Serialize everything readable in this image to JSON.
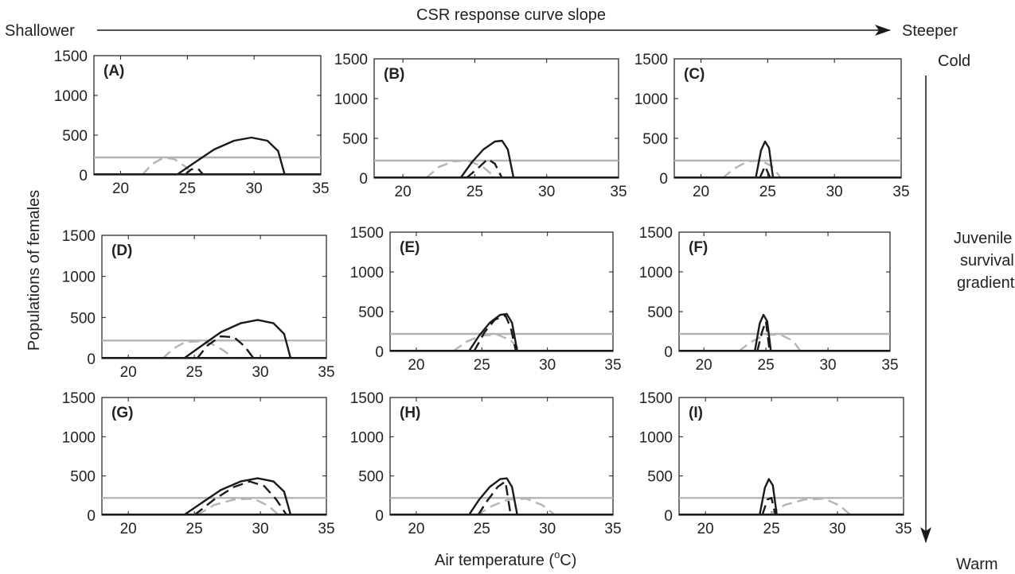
{
  "header": {
    "top_title": "CSR response curve slope",
    "left_label": "Shallower",
    "right_label": "Steeper",
    "right_top": "Cold",
    "right_mid": [
      "Juvenile",
      "survival",
      "gradient"
    ],
    "right_bottom": "Warm"
  },
  "axes": {
    "ylabel": "Populations of females",
    "xlabel_main": "Air  temperature (",
    "xlabel_sup": "o",
    "xlabel_end": "C)"
  },
  "colors": {
    "black": "#1a1a1a",
    "gray": "#b4b4b4"
  },
  "chart_data": [
    {
      "type": "line",
      "panel": "(A)",
      "xlim": [
        18,
        35
      ],
      "ylim": [
        0,
        1500
      ],
      "xticks": [
        20,
        25,
        30,
        35
      ],
      "yticks": [
        0,
        500,
        1000,
        1500
      ],
      "series": [
        {
          "style": "gray-solid",
          "x": [
            18,
            35
          ],
          "y": [
            220,
            220
          ]
        },
        {
          "style": "gray-dashed",
          "x": [
            21.6,
            22.4,
            23.2,
            24.0,
            24.8,
            25.5
          ],
          "y": [
            0,
            140,
            215,
            200,
            110,
            0
          ]
        },
        {
          "style": "black-solid",
          "x": [
            24.2,
            25.5,
            27.0,
            28.5,
            29.8,
            31.0,
            31.8,
            32.3
          ],
          "y": [
            0,
            150,
            320,
            430,
            470,
            430,
            300,
            0
          ]
        },
        {
          "style": "black-dashed",
          "x": [
            24.8,
            25.3,
            25.8,
            26.2
          ],
          "y": [
            0,
            70,
            80,
            0
          ]
        }
      ]
    },
    {
      "type": "line",
      "panel": "(B)",
      "xlim": [
        18,
        35
      ],
      "ylim": [
        0,
        1500
      ],
      "xticks": [
        20,
        25,
        30,
        35
      ],
      "yticks": [
        0,
        500,
        1000,
        1500
      ],
      "series": [
        {
          "style": "gray-solid",
          "x": [
            18,
            35
          ],
          "y": [
            220,
            220
          ]
        },
        {
          "style": "gray-dashed",
          "x": [
            21.6,
            22.5,
            23.5,
            24.5,
            25.5,
            26.5
          ],
          "y": [
            0,
            140,
            210,
            220,
            150,
            0
          ]
        },
        {
          "style": "black-solid",
          "x": [
            24.0,
            24.8,
            25.6,
            26.4,
            26.9,
            27.3,
            27.7
          ],
          "y": [
            0,
            200,
            360,
            460,
            470,
            360,
            0
          ]
        },
        {
          "style": "black-dashed",
          "x": [
            24.4,
            25.2,
            25.9,
            26.4,
            26.9
          ],
          "y": [
            0,
            120,
            240,
            180,
            0
          ]
        }
      ]
    },
    {
      "type": "line",
      "panel": "(C)",
      "xlim": [
        18,
        35
      ],
      "ylim": [
        0,
        1500
      ],
      "xticks": [
        20,
        25,
        30,
        35
      ],
      "yticks": [
        0,
        500,
        1000,
        1500
      ],
      "series": [
        {
          "style": "gray-solid",
          "x": [
            18,
            35
          ],
          "y": [
            220,
            220
          ]
        },
        {
          "style": "gray-dashed",
          "x": [
            21.6,
            22.5,
            23.5,
            24.5,
            25.3,
            26.0
          ],
          "y": [
            0,
            120,
            210,
            220,
            150,
            0
          ]
        },
        {
          "style": "black-solid",
          "x": [
            24.1,
            24.5,
            24.8,
            25.1,
            25.4
          ],
          "y": [
            0,
            350,
            460,
            380,
            0
          ]
        },
        {
          "style": "black-dashed",
          "x": [
            24.4,
            24.8,
            25.2
          ],
          "y": [
            0,
            150,
            0
          ]
        }
      ]
    },
    {
      "type": "line",
      "panel": "(D)",
      "xlim": [
        18,
        35
      ],
      "ylim": [
        0,
        1500
      ],
      "xticks": [
        20,
        25,
        30,
        35
      ],
      "yticks": [
        0,
        500,
        1000,
        1500
      ],
      "series": [
        {
          "style": "gray-solid",
          "x": [
            18,
            35
          ],
          "y": [
            220,
            220
          ]
        },
        {
          "style": "gray-dashed",
          "x": [
            22.6,
            23.4,
            24.3,
            25.3,
            26.3,
            27.2,
            28.0
          ],
          "y": [
            0,
            120,
            200,
            210,
            180,
            100,
            0
          ]
        },
        {
          "style": "black-solid",
          "x": [
            24.2,
            25.5,
            27.0,
            28.5,
            29.8,
            31.0,
            31.8,
            32.3
          ],
          "y": [
            0,
            150,
            320,
            430,
            470,
            430,
            300,
            0
          ]
        },
        {
          "style": "black-dashed",
          "x": [
            25.2,
            26.0,
            27.0,
            28.0,
            28.8,
            29.5
          ],
          "y": [
            0,
            160,
            270,
            260,
            150,
            0
          ]
        }
      ]
    },
    {
      "type": "line",
      "panel": "(E)",
      "xlim": [
        18,
        35
      ],
      "ylim": [
        0,
        1500
      ],
      "xticks": [
        20,
        25,
        30,
        35
      ],
      "yticks": [
        0,
        500,
        1000,
        1500
      ],
      "series": [
        {
          "style": "gray-solid",
          "x": [
            18,
            35
          ],
          "y": [
            220,
            220
          ]
        },
        {
          "style": "gray-dashed",
          "x": [
            22.8,
            23.8,
            25.0,
            26.2,
            27.2,
            28.0
          ],
          "y": [
            0,
            120,
            200,
            210,
            140,
            0
          ]
        },
        {
          "style": "black-solid",
          "x": [
            24.0,
            24.8,
            25.6,
            26.4,
            26.9,
            27.3,
            27.7
          ],
          "y": [
            0,
            200,
            360,
            460,
            470,
            360,
            0
          ]
        },
        {
          "style": "black-dashed",
          "x": [
            24.4,
            25.2,
            26.0,
            26.8,
            27.2,
            27.6
          ],
          "y": [
            0,
            240,
            400,
            450,
            300,
            0
          ]
        }
      ]
    },
    {
      "type": "line",
      "panel": "(F)",
      "xlim": [
        18,
        35
      ],
      "ylim": [
        0,
        1500
      ],
      "xticks": [
        20,
        25,
        30,
        35
      ],
      "yticks": [
        0,
        500,
        1000,
        1500
      ],
      "series": [
        {
          "style": "gray-solid",
          "x": [
            18,
            35
          ],
          "y": [
            220,
            220
          ]
        },
        {
          "style": "gray-dashed",
          "x": [
            22.8,
            23.8,
            25.0,
            26.2,
            27.2,
            27.8
          ],
          "y": [
            0,
            120,
            210,
            210,
            130,
            0
          ]
        },
        {
          "style": "black-solid",
          "x": [
            24.1,
            24.5,
            24.8,
            25.1,
            25.4
          ],
          "y": [
            0,
            350,
            460,
            380,
            0
          ]
        },
        {
          "style": "black-dashed",
          "x": [
            24.3,
            24.7,
            25.0,
            25.3
          ],
          "y": [
            0,
            250,
            380,
            0
          ]
        }
      ]
    },
    {
      "type": "line",
      "panel": "(G)",
      "xlim": [
        18,
        35
      ],
      "ylim": [
        0,
        1500
      ],
      "xticks": [
        20,
        25,
        30,
        35
      ],
      "yticks": [
        0,
        500,
        1000,
        1500
      ],
      "series": [
        {
          "style": "gray-solid",
          "x": [
            18,
            35
          ],
          "y": [
            220,
            220
          ]
        },
        {
          "style": "gray-dashed",
          "x": [
            25.2,
            26.5,
            28.0,
            29.5,
            30.6,
            31.4
          ],
          "y": [
            0,
            130,
            200,
            210,
            120,
            0
          ]
        },
        {
          "style": "black-solid",
          "x": [
            24.2,
            25.5,
            27.0,
            28.5,
            29.8,
            31.0,
            31.8,
            32.3
          ],
          "y": [
            0,
            150,
            320,
            430,
            470,
            430,
            300,
            0
          ]
        },
        {
          "style": "black-dashed",
          "x": [
            25.0,
            26.5,
            28.0,
            29.2,
            30.3,
            31.2,
            32.0
          ],
          "y": [
            0,
            200,
            360,
            430,
            370,
            200,
            0
          ]
        }
      ]
    },
    {
      "type": "line",
      "panel": "(H)",
      "xlim": [
        18,
        35
      ],
      "ylim": [
        0,
        1500
      ],
      "xticks": [
        20,
        25,
        30,
        35
      ],
      "yticks": [
        0,
        500,
        1000,
        1500
      ],
      "series": [
        {
          "style": "gray-solid",
          "x": [
            18,
            35
          ],
          "y": [
            220,
            220
          ]
        },
        {
          "style": "gray-dashed",
          "x": [
            24.6,
            25.8,
            27.0,
            28.4,
            29.6,
            30.6
          ],
          "y": [
            0,
            120,
            200,
            210,
            130,
            0
          ]
        },
        {
          "style": "black-solid",
          "x": [
            24.0,
            24.8,
            25.6,
            26.4,
            26.9,
            27.3,
            27.7
          ],
          "y": [
            0,
            200,
            360,
            460,
            470,
            360,
            0
          ]
        },
        {
          "style": "black-dashed",
          "x": [
            24.7,
            25.4,
            26.2,
            26.8,
            27.2
          ],
          "y": [
            0,
            180,
            360,
            430,
            0
          ]
        }
      ]
    },
    {
      "type": "line",
      "panel": "(I)",
      "xlim": [
        18,
        35
      ],
      "ylim": [
        0,
        1500
      ],
      "xticks": [
        20,
        25,
        30,
        35
      ],
      "yticks": [
        0,
        500,
        1000,
        1500
      ],
      "series": [
        {
          "style": "gray-solid",
          "x": [
            18,
            35
          ],
          "y": [
            220,
            220
          ]
        },
        {
          "style": "gray-dashed",
          "x": [
            24.8,
            26.0,
            27.5,
            29.0,
            30.2,
            31.0
          ],
          "y": [
            0,
            130,
            200,
            210,
            120,
            0
          ]
        },
        {
          "style": "black-solid",
          "x": [
            24.1,
            24.5,
            24.8,
            25.1,
            25.4
          ],
          "y": [
            0,
            350,
            460,
            380,
            0
          ]
        },
        {
          "style": "black-dashed",
          "x": [
            24.3,
            24.7,
            25.0,
            25.3
          ],
          "y": [
            0,
            200,
            220,
            0
          ]
        }
      ]
    }
  ]
}
